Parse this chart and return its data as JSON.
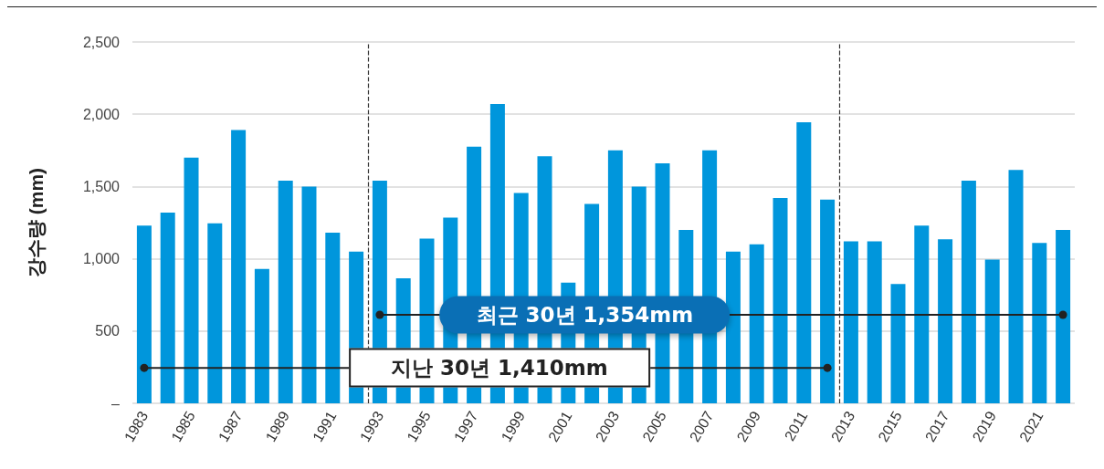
{
  "chart_data": {
    "type": "bar",
    "ylabel": "강수량 (mm)",
    "x": [
      1983,
      1984,
      1985,
      1986,
      1987,
      1988,
      1989,
      1990,
      1991,
      1992,
      1993,
      1994,
      1995,
      1996,
      1997,
      1998,
      1999,
      2000,
      2001,
      2002,
      2003,
      2004,
      2005,
      2006,
      2007,
      2008,
      2009,
      2010,
      2011,
      2012,
      2013,
      2014,
      2015,
      2016,
      2017,
      2018,
      2019,
      2020,
      2021,
      2022
    ],
    "values": [
      1230,
      1320,
      1700,
      1245,
      1890,
      930,
      1540,
      1500,
      1180,
      1050,
      1540,
      865,
      1140,
      1285,
      1775,
      2070,
      1455,
      1710,
      835,
      1380,
      1750,
      1500,
      1660,
      1200,
      1750,
      1050,
      1100,
      1420,
      1945,
      1410,
      1120,
      1120,
      825,
      1230,
      1135,
      1540,
      995,
      1615,
      1110,
      1200
    ],
    "color": "#0096dc",
    "xlim": [
      1982.5,
      2022.5
    ],
    "xticks": [
      1983,
      1985,
      1987,
      1989,
      1991,
      1993,
      1995,
      1997,
      1999,
      2001,
      2003,
      2005,
      2007,
      2009,
      2011,
      2013,
      2015,
      2017,
      2019,
      2021
    ],
    "ylim": [
      0,
      2500
    ],
    "yticks": [
      {
        "value": 0,
        "label": "–"
      },
      {
        "value": 500,
        "label": "500"
      },
      {
        "value": 1000,
        "label": "1,000"
      },
      {
        "value": 1500,
        "label": "1,500"
      },
      {
        "value": 2000,
        "label": "2,000"
      },
      {
        "value": 2500,
        "label": "2,500"
      }
    ],
    "grid": "y",
    "ref_lines": [
      {
        "axis": "x",
        "value": 1992.5,
        "color": "#333333",
        "line_style": "dashed"
      },
      {
        "axis": "x",
        "value": 2012.5,
        "color": "#333333",
        "line_style": "dashed"
      }
    ],
    "annotations": [
      "최근 30년 1,354mm",
      "지난 30년 1,410mm"
    ]
  }
}
